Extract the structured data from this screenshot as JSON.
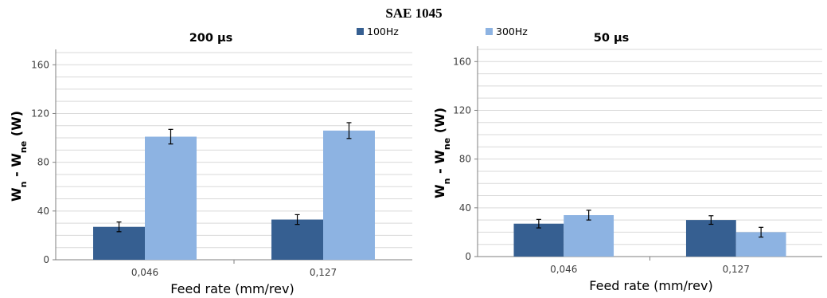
{
  "figure_title": "SAE 1045",
  "legend": [
    {
      "label": "100Hz",
      "color": "#365f91"
    },
    {
      "label": "300Hz",
      "color": "#8db3e2"
    }
  ],
  "chart_data": [
    {
      "type": "bar",
      "title": "200 μs",
      "categories": [
        "0,046",
        "0,127"
      ],
      "xlabel": "Feed rate (mm/rev)",
      "ylabel": "W_n - W_ne (W)",
      "ylim": [
        0,
        170
      ],
      "yticks": [
        0,
        40,
        80,
        120,
        160
      ],
      "minor_grid_step": 10,
      "grid": true,
      "series": [
        {
          "name": "100Hz",
          "values": [
            27,
            33
          ],
          "errors": [
            4,
            4
          ]
        },
        {
          "name": "300Hz",
          "values": [
            101,
            106
          ],
          "errors": [
            6,
            6.5
          ]
        }
      ]
    },
    {
      "type": "bar",
      "title": "50 μs",
      "categories": [
        "0,046",
        "0,127"
      ],
      "xlabel": "Feed rate (mm/rev)",
      "ylabel": "W_n - W_ne (W)",
      "ylim": [
        0,
        170
      ],
      "yticks": [
        0,
        40,
        80,
        120,
        160
      ],
      "minor_grid_step": 10,
      "grid": true,
      "series": [
        {
          "name": "100Hz",
          "values": [
            27,
            30
          ],
          "errors": [
            3.5,
            3.5
          ]
        },
        {
          "name": "300Hz",
          "values": [
            34,
            20
          ],
          "errors": [
            4,
            4
          ]
        }
      ]
    }
  ]
}
